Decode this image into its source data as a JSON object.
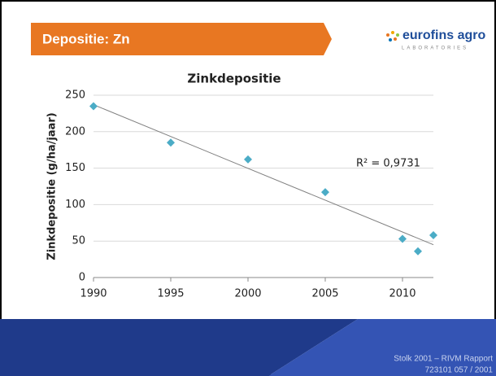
{
  "slide": {
    "title": "Depositie: Zn",
    "logo": "eurofins agro",
    "logo_sub": "LABORATORIES",
    "source": [
      "Stolk 2001 – RIVM Rapport",
      "723101 057 / 2001"
    ]
  },
  "chart_data": {
    "type": "scatter",
    "title": "Zinkdepositie",
    "y_label": "Zinkdepositie (g/ha/jaar)",
    "x": [
      1990,
      1995,
      2000,
      2005,
      2010,
      2011,
      2012
    ],
    "values": [
      235,
      185,
      162,
      117,
      53,
      36,
      58
    ],
    "color": "#4bacc6",
    "xlim": [
      1990,
      2012
    ],
    "xticks": [
      1990,
      1995,
      2000,
      2005,
      2010
    ],
    "ylim": [
      0,
      250
    ],
    "yticks": [
      0,
      50,
      100,
      150,
      200,
      250
    ],
    "grid": true,
    "trendline": {
      "x": [
        1990,
        2012
      ],
      "values": [
        237,
        45
      ],
      "color": "#7f7f7f"
    },
    "annotation": "R² = 0,9731"
  }
}
